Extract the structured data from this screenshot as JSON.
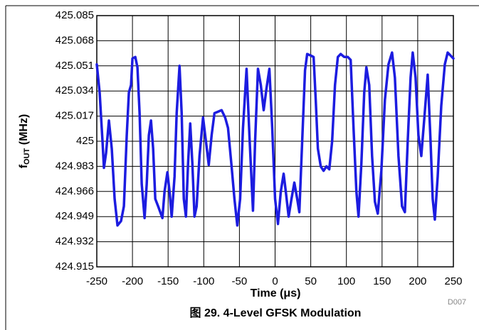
{
  "chart_data": {
    "type": "line",
    "title": "图 29. 4-Level GFSK Modulation",
    "xlabel": "Time (μs)",
    "ylabel": [
      "f",
      "OUT",
      " (MHz)"
    ],
    "note": "D007",
    "color": "#1c1ce0",
    "grid": true,
    "xlim": [
      -250,
      250
    ],
    "xticks": [
      -250,
      -200,
      -150,
      -100,
      -50,
      0,
      50,
      100,
      150,
      200,
      250
    ],
    "ylim": [
      424.915,
      425.085
    ],
    "yticks": [
      424.915,
      424.932,
      424.949,
      424.966,
      424.983,
      425,
      425.017,
      425.034,
      425.051,
      425.068,
      425.085
    ],
    "x": [
      -250,
      -246,
      -242,
      -240,
      -237,
      -233,
      -229,
      -225,
      -221,
      -216,
      -212,
      -208,
      -205,
      -202,
      -200,
      -196,
      -193,
      -190,
      -187,
      -183,
      -180,
      -177,
      -174,
      -171,
      -168,
      -164,
      -161,
      -158,
      -155,
      -151,
      -148,
      -145,
      -141,
      -138,
      -134,
      -131,
      -128,
      -125,
      -122,
      -119,
      -116,
      -113,
      -110,
      -106,
      -101,
      -97,
      -93,
      -89,
      -85,
      -80,
      -75,
      -70,
      -66,
      -61,
      -57,
      -53,
      -49,
      -45,
      -40,
      -36,
      -31,
      -28,
      -24,
      -20,
      -16,
      -12,
      -8,
      -4,
      0,
      4,
      8,
      12,
      15,
      19,
      23,
      27,
      31,
      34,
      38,
      42,
      45,
      50,
      54,
      57,
      60,
      64,
      68,
      72,
      76,
      80,
      84,
      88,
      92,
      97,
      102,
      106,
      110,
      114,
      117,
      121,
      125,
      128,
      132,
      136,
      140,
      144,
      149,
      154,
      159,
      164,
      168,
      173,
      178,
      182,
      186,
      190,
      193,
      197,
      201,
      205,
      209,
      214,
      218,
      221,
      224,
      228,
      233,
      238,
      242,
      246,
      250
    ],
    "values": [
      425.052,
      425.033,
      425,
      424.982,
      424.992,
      425.014,
      424.995,
      424.961,
      424.943,
      424.946,
      424.956,
      425.004,
      425.033,
      425.038,
      425.056,
      425.057,
      425.05,
      425.019,
      424.971,
      424.948,
      424.971,
      425.004,
      425.014,
      424.995,
      424.961,
      424.956,
      424.952,
      424.948,
      424.966,
      424.979,
      424.966,
      424.949,
      424.976,
      425.019,
      425.051,
      425.019,
      424.961,
      424.949,
      424.985,
      425.012,
      424.985,
      424.949,
      424.956,
      424.99,
      425.016,
      425,
      424.984,
      425.004,
      425.019,
      425.02,
      425.021,
      425.016,
      425.009,
      424.983,
      424.961,
      424.943,
      424.961,
      425.009,
      425.049,
      425.004,
      424.953,
      425,
      425.049,
      425.038,
      425.021,
      425.036,
      425.049,
      425.009,
      424.961,
      424.944,
      424.966,
      424.978,
      424.966,
      424.949,
      424.961,
      424.972,
      424.961,
      424.952,
      425,
      425.048,
      425.059,
      425.058,
      425.057,
      425.028,
      424.995,
      424.983,
      424.98,
      424.983,
      424.981,
      425,
      425.038,
      425.057,
      425.059,
      425.057,
      425.057,
      425.055,
      425.009,
      424.966,
      424.949,
      424.985,
      425.033,
      425.05,
      425.038,
      424.99,
      424.959,
      424.951,
      424.98,
      425.028,
      425.052,
      425.06,
      425.043,
      424.99,
      424.956,
      424.952,
      425,
      425.043,
      425.06,
      425.043,
      425.004,
      424.99,
      425.014,
      425.045,
      425,
      424.961,
      424.947,
      424.976,
      425.024,
      425.052,
      425.06,
      425.058,
      425.056
    ]
  }
}
